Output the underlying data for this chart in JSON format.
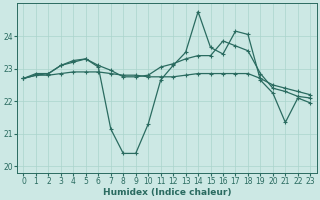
{
  "xlabel": "Humidex (Indice chaleur)",
  "xlim": [
    -0.5,
    23.5
  ],
  "ylim": [
    19.8,
    25.0
  ],
  "yticks": [
    20,
    21,
    22,
    23,
    24
  ],
  "xticks": [
    0,
    1,
    2,
    3,
    4,
    5,
    6,
    7,
    8,
    9,
    10,
    11,
    12,
    13,
    14,
    15,
    16,
    17,
    18,
    19,
    20,
    21,
    22,
    23
  ],
  "bg_color": "#cce8e4",
  "grid_color": "#aad4cc",
  "line_color": "#2a6b60",
  "lines": [
    {
      "x": [
        0,
        1,
        2,
        3,
        4,
        5,
        6,
        7,
        8,
        9,
        10,
        11,
        12,
        13,
        14,
        15,
        16,
        17,
        18,
        19,
        20,
        21,
        22,
        23
      ],
      "y": [
        22.7,
        22.8,
        22.8,
        22.85,
        22.9,
        22.9,
        22.9,
        22.85,
        22.8,
        22.8,
        22.75,
        22.75,
        22.75,
        22.8,
        22.85,
        22.85,
        22.85,
        22.85,
        22.85,
        22.7,
        22.5,
        22.4,
        22.3,
        22.2
      ]
    },
    {
      "x": [
        0,
        1,
        2,
        3,
        4,
        5,
        6,
        7,
        8,
        9,
        10,
        11,
        12,
        13,
        14,
        15,
        16,
        17,
        18,
        19,
        20,
        21,
        22,
        23
      ],
      "y": [
        22.7,
        22.8,
        22.85,
        23.1,
        23.2,
        23.3,
        23.05,
        21.15,
        20.4,
        20.4,
        21.3,
        22.65,
        23.1,
        23.5,
        24.75,
        23.65,
        23.45,
        24.15,
        24.05,
        22.65,
        22.25,
        21.35,
        22.1,
        21.95
      ]
    },
    {
      "x": [
        0,
        1,
        2,
        3,
        4,
        5,
        6,
        7,
        8,
        9,
        10,
        11,
        12,
        13,
        14,
        15,
        16,
        17,
        18,
        19,
        20,
        21,
        22,
        23
      ],
      "y": [
        22.7,
        22.85,
        22.85,
        23.1,
        23.25,
        23.3,
        23.1,
        22.95,
        22.75,
        22.75,
        22.8,
        23.05,
        23.15,
        23.3,
        23.4,
        23.4,
        23.85,
        23.7,
        23.55,
        22.85,
        22.4,
        22.3,
        22.15,
        22.1
      ]
    }
  ],
  "marker": "+",
  "markersize": 3,
  "linewidth": 0.9
}
